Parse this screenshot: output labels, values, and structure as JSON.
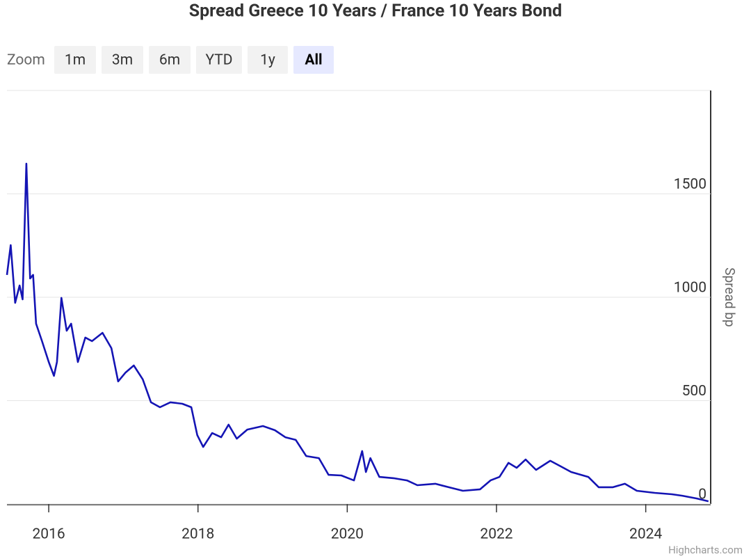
{
  "chart_data": {
    "type": "line",
    "title": "Spread Greece 10 Years / France 10 Years Bond",
    "zoom_label": "Zoom",
    "zoom_buttons": [
      "1m",
      "3m",
      "6m",
      "YTD",
      "1y",
      "All"
    ],
    "zoom_selected": 5,
    "y_axis_label": "Spread bp",
    "credits": "Highcharts.com",
    "xlim": [
      2015.44,
      2024.87
    ],
    "xticks": [
      2016,
      2018,
      2020,
      2022,
      2024
    ],
    "ylim": [
      0,
      2000
    ],
    "yticks": [
      0,
      500,
      1000,
      1500
    ],
    "y_axis_side": "right",
    "grid": true,
    "series": [
      {
        "name": "Spread",
        "color": "#1414b4",
        "x": [
          2015.44,
          2015.49,
          2015.55,
          2015.61,
          2015.65,
          2015.7,
          2015.75,
          2015.79,
          2015.83,
          2015.91,
          2016.0,
          2016.07,
          2016.11,
          2016.17,
          2016.24,
          2016.3,
          2016.39,
          2016.49,
          2016.58,
          2016.72,
          2016.84,
          2016.93,
          2017.03,
          2017.14,
          2017.26,
          2017.37,
          2017.49,
          2017.63,
          2017.79,
          2017.91,
          2017.99,
          2018.07,
          2018.19,
          2018.31,
          2018.41,
          2018.52,
          2018.66,
          2018.87,
          2019.03,
          2019.17,
          2019.31,
          2019.45,
          2019.62,
          2019.75,
          2019.92,
          2020.09,
          2020.2,
          2020.25,
          2020.31,
          2020.43,
          2020.62,
          2020.8,
          2020.94,
          2021.18,
          2021.36,
          2021.55,
          2021.78,
          2021.92,
          2022.04,
          2022.16,
          2022.27,
          2022.39,
          2022.53,
          2022.72,
          2022.86,
          2023.0,
          2023.23,
          2023.37,
          2023.56,
          2023.72,
          2023.88,
          2024.12,
          2024.35,
          2024.49,
          2024.68,
          2024.84
        ],
        "values": [
          1108,
          1252,
          973,
          1057,
          990,
          1646,
          1091,
          1108,
          872,
          788,
          687,
          620,
          687,
          997,
          838,
          872,
          687,
          805,
          788,
          828,
          754,
          593,
          636,
          670,
          603,
          492,
          468,
          492,
          485,
          468,
          333,
          276,
          343,
          323,
          384,
          316,
          360,
          377,
          357,
          323,
          310,
          232,
          222,
          141,
          138,
          114,
          256,
          155,
          222,
          131,
          125,
          114,
          91,
          98,
          81,
          64,
          71,
          114,
          131,
          199,
          175,
          215,
          165,
          209,
          182,
          155,
          131,
          81,
          81,
          98,
          64,
          54,
          47,
          40,
          27,
          13
        ]
      }
    ]
  }
}
